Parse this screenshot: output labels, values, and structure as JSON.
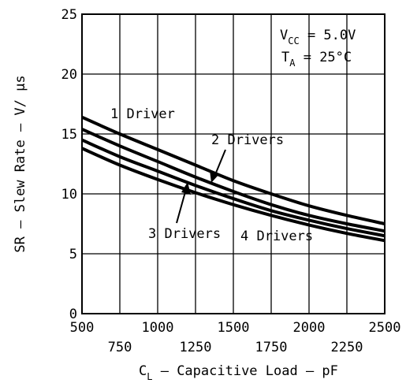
{
  "chart_data": {
    "type": "line",
    "title": "",
    "xlabel": {
      "main": "C",
      "sub": "L",
      "rest": " – Capacitive Load – pF"
    },
    "ylabel": "SR – Slew Rate – V/ μs",
    "xlim": [
      500,
      2500
    ],
    "ylim": [
      0,
      25
    ],
    "grid": true,
    "xticks_major": [
      "500",
      "1000",
      "1500",
      "2000",
      "2500"
    ],
    "xticks_minor": [
      "750",
      "1250",
      "1750",
      "2250"
    ],
    "yticks": [
      "0",
      "5",
      "10",
      "15",
      "20",
      "25"
    ],
    "x": [
      500,
      750,
      1000,
      1250,
      1500,
      1750,
      2000,
      2250,
      2500
    ],
    "series": [
      {
        "name": "1 Driver",
        "values": [
          16.4,
          15.0,
          13.7,
          12.4,
          11.1,
          10.0,
          9.0,
          8.2,
          7.5
        ]
      },
      {
        "name": "2 Drivers",
        "values": [
          15.4,
          14.0,
          12.7,
          11.4,
          10.2,
          9.1,
          8.2,
          7.5,
          6.9
        ]
      },
      {
        "name": "3 Drivers",
        "values": [
          14.5,
          13.1,
          11.9,
          10.7,
          9.6,
          8.6,
          7.8,
          7.1,
          6.5
        ]
      },
      {
        "name": "4 Drivers",
        "values": [
          13.8,
          12.4,
          11.2,
          10.1,
          9.1,
          8.2,
          7.4,
          6.7,
          6.1
        ]
      }
    ],
    "annotations": {
      "conditions": {
        "vcc": {
          "main": "V",
          "sub": "CC",
          "rest": " = 5.0V"
        },
        "ta": {
          "main": "T",
          "sub": "A",
          "rest": " = 25°C"
        }
      }
    }
  }
}
